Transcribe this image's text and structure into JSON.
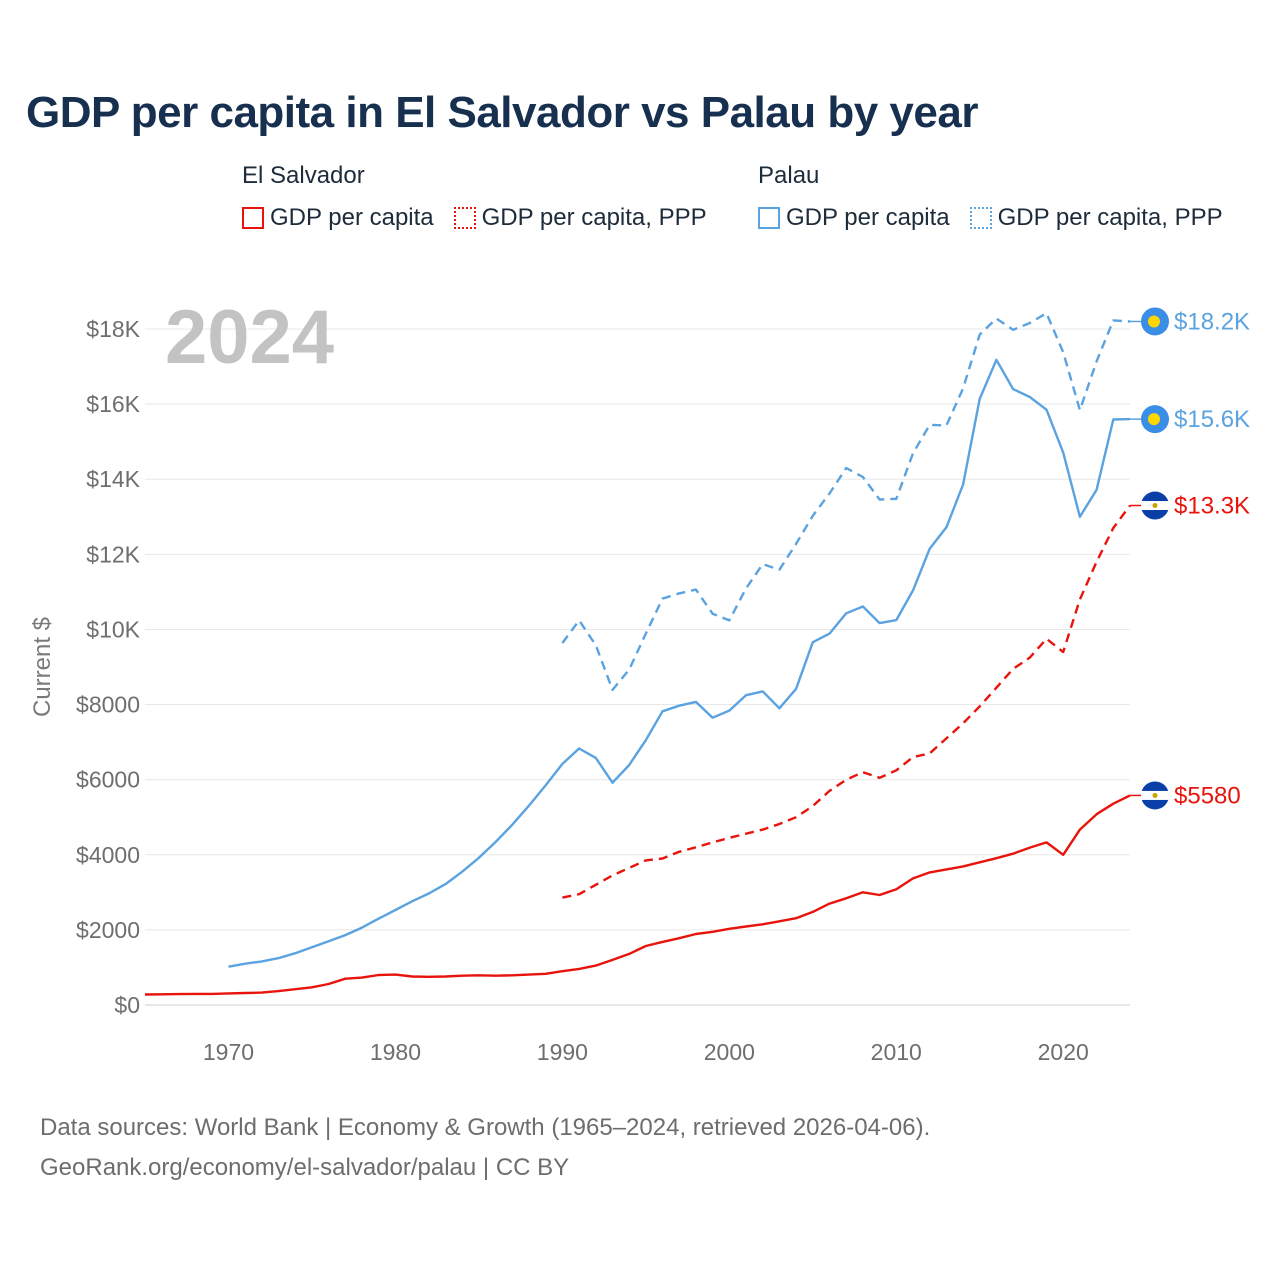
{
  "title": "GDP per capita in El Salvador vs Palau by year",
  "legend": {
    "el_salvador": {
      "country": "El Salvador",
      "gdp": "GDP per capita",
      "ppp": "GDP per capita, PPP"
    },
    "palau": {
      "country": "Palau",
      "gdp": "GDP per capita",
      "ppp": "GDP per capita, PPP"
    }
  },
  "colors": {
    "el_salvador": "#e8140c",
    "palau": "#5aa3e0",
    "grid": "#e6e6e6",
    "title": "#17304f"
  },
  "footer": {
    "line1": "Data sources: World Bank | Economy & Growth (1965–2024, retrieved 2026-04-06).",
    "line2": "GeoRank.org/economy/el-salvador/palau | CC BY"
  },
  "chart_data": {
    "type": "line",
    "year_label": "2024",
    "ylabel": "Current $",
    "xlim": [
      1965,
      2024
    ],
    "ylim": [
      0,
      18000
    ],
    "x_ticks": [
      1970,
      1980,
      1990,
      2000,
      2010,
      2020
    ],
    "y_ticks": [
      {
        "value": 0,
        "label": "$0"
      },
      {
        "value": 2000,
        "label": "$2000"
      },
      {
        "value": 4000,
        "label": "$4000"
      },
      {
        "value": 6000,
        "label": "$6000"
      },
      {
        "value": 8000,
        "label": "$8000"
      },
      {
        "value": 10000,
        "label": "$10K"
      },
      {
        "value": 12000,
        "label": "$12K"
      },
      {
        "value": 14000,
        "label": "$14K"
      },
      {
        "value": 16000,
        "label": "$16K"
      },
      {
        "value": 18000,
        "label": "$18K"
      }
    ],
    "series": [
      {
        "name": "El Salvador GDP per capita",
        "country": "El Salvador",
        "style": "solid",
        "color": "#e8140c",
        "end_label": "$5580",
        "x": [
          1965,
          1966,
          1967,
          1968,
          1969,
          1970,
          1971,
          1972,
          1973,
          1974,
          1975,
          1976,
          1977,
          1978,
          1979,
          1980,
          1981,
          1982,
          1983,
          1984,
          1985,
          1986,
          1987,
          1988,
          1989,
          1990,
          1991,
          1992,
          1993,
          1994,
          1995,
          1996,
          1997,
          1998,
          1999,
          2000,
          2001,
          2002,
          2003,
          2004,
          2005,
          2006,
          2007,
          2008,
          2009,
          2010,
          2011,
          2012,
          2013,
          2014,
          2015,
          2016,
          2017,
          2018,
          2019,
          2020,
          2021,
          2022,
          2023,
          2024
        ],
        "values": [
          280,
          285,
          290,
          295,
          295,
          310,
          320,
          330,
          370,
          420,
          470,
          560,
          700,
          730,
          800,
          810,
          760,
          750,
          760,
          780,
          790,
          780,
          790,
          810,
          830,
          900,
          960,
          1050,
          1200,
          1360,
          1570,
          1680,
          1780,
          1890,
          1950,
          2030,
          2090,
          2150,
          2230,
          2310,
          2480,
          2700,
          2840,
          3000,
          2930,
          3080,
          3370,
          3530,
          3610,
          3690,
          3800,
          3910,
          4030,
          4190,
          4330,
          4000,
          4670,
          5080,
          5360,
          5580
        ]
      },
      {
        "name": "El Salvador GDP per capita, PPP",
        "country": "El Salvador",
        "style": "dashed",
        "color": "#e8140c",
        "end_label": "$13.3K",
        "x": [
          1990,
          1991,
          1992,
          1993,
          1994,
          1995,
          1996,
          1997,
          1998,
          1999,
          2000,
          2001,
          2002,
          2003,
          2004,
          2005,
          2006,
          2007,
          2008,
          2009,
          2010,
          2011,
          2012,
          2013,
          2014,
          2015,
          2016,
          2017,
          2018,
          2019,
          2020,
          2021,
          2022,
          2023,
          2024
        ],
        "values": [
          2860,
          2950,
          3200,
          3450,
          3650,
          3850,
          3900,
          4080,
          4200,
          4330,
          4450,
          4560,
          4670,
          4820,
          5000,
          5300,
          5700,
          6000,
          6200,
          6050,
          6250,
          6600,
          6700,
          7100,
          7500,
          7950,
          8450,
          8950,
          9250,
          9750,
          9400,
          10800,
          11800,
          12700,
          13300
        ]
      },
      {
        "name": "Palau GDP per capita",
        "country": "Palau",
        "style": "solid",
        "color": "#5aa3e0",
        "end_label": "$15.6K",
        "x": [
          1970,
          1971,
          1972,
          1973,
          1974,
          1975,
          1976,
          1977,
          1978,
          1979,
          1980,
          1981,
          1982,
          1983,
          1984,
          1985,
          1986,
          1987,
          1988,
          1989,
          1990,
          1991,
          1992,
          1993,
          1994,
          1995,
          1996,
          1997,
          1998,
          1999,
          2000,
          2001,
          2002,
          2003,
          2004,
          2005,
          2006,
          2007,
          2008,
          2009,
          2010,
          2011,
          2012,
          2013,
          2014,
          2015,
          2016,
          2017,
          2018,
          2019,
          2020,
          2021,
          2022,
          2023,
          2024
        ],
        "values": [
          1020,
          1100,
          1160,
          1250,
          1380,
          1540,
          1700,
          1860,
          2060,
          2300,
          2530,
          2760,
          2970,
          3220,
          3550,
          3920,
          4340,
          4800,
          5310,
          5850,
          6420,
          6830,
          6580,
          5920,
          6390,
          7050,
          7820,
          7970,
          8070,
          7650,
          7840,
          8250,
          8350,
          7900,
          8420,
          9660,
          9890,
          10430,
          10610,
          10170,
          10250,
          11040,
          12150,
          12720,
          13860,
          16140,
          17180,
          16400,
          16190,
          15850,
          14710,
          13000,
          13720,
          15590,
          15600
        ]
      },
      {
        "name": "Palau GDP per capita, PPP",
        "country": "Palau",
        "style": "dashed",
        "color": "#5aa3e0",
        "end_label": "$18.2K",
        "x": [
          1990,
          1991,
          1992,
          1993,
          1994,
          1995,
          1996,
          1997,
          1998,
          1999,
          2000,
          2001,
          2002,
          2003,
          2004,
          2005,
          2006,
          2007,
          2008,
          2009,
          2010,
          2011,
          2012,
          2013,
          2014,
          2015,
          2016,
          2017,
          2018,
          2019,
          2020,
          2021,
          2022,
          2023,
          2024
        ],
        "values": [
          9640,
          10240,
          9580,
          8390,
          8930,
          9890,
          10820,
          10960,
          11060,
          10420,
          10240,
          11090,
          11740,
          11590,
          12280,
          13030,
          13620,
          14300,
          14060,
          13460,
          13480,
          14690,
          15450,
          15430,
          16420,
          17850,
          18280,
          17980,
          18160,
          18420,
          17380,
          15840,
          17140,
          18230,
          18200
        ]
      }
    ]
  }
}
